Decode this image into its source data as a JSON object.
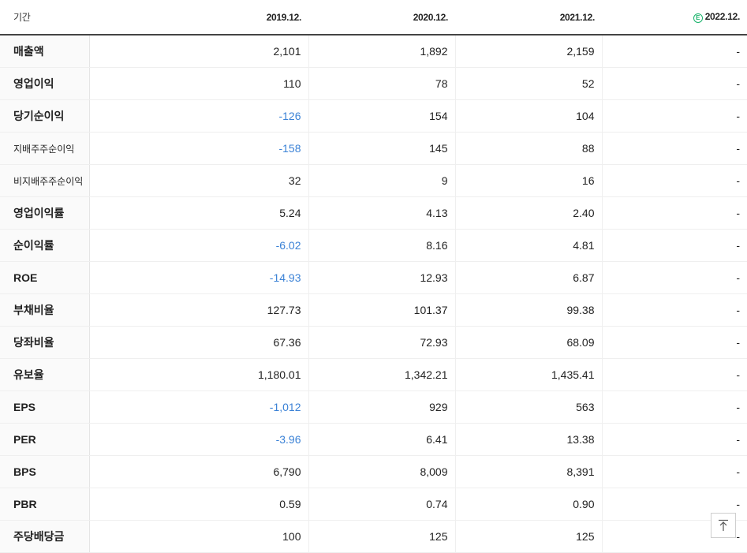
{
  "table": {
    "header": {
      "label": "기간",
      "years": [
        "2019.12.",
        "2020.12.",
        "2021.12.",
        "2022.12."
      ],
      "estimate_badge": "E"
    },
    "rows": [
      {
        "label": "매출액",
        "values": [
          "2,101",
          "1,892",
          "2,159",
          "-"
        ],
        "negative": [
          false,
          false,
          false,
          false
        ],
        "small": false,
        "group_start": false
      },
      {
        "label": "영업이익",
        "values": [
          "110",
          "78",
          "52",
          "-"
        ],
        "negative": [
          false,
          false,
          false,
          false
        ],
        "small": false,
        "group_start": false
      },
      {
        "label": "당기순이익",
        "values": [
          "-126",
          "154",
          "104",
          "-"
        ],
        "negative": [
          true,
          false,
          false,
          false
        ],
        "small": false,
        "group_start": false
      },
      {
        "label": "지배주주순이익",
        "values": [
          "-158",
          "145",
          "88",
          "-"
        ],
        "negative": [
          true,
          false,
          false,
          false
        ],
        "small": true,
        "group_start": false
      },
      {
        "label": "비지배주주순이익",
        "values": [
          "32",
          "9",
          "16",
          "-"
        ],
        "negative": [
          false,
          false,
          false,
          false
        ],
        "small": true,
        "group_start": false
      },
      {
        "label": "영업이익률",
        "values": [
          "5.24",
          "4.13",
          "2.40",
          "-"
        ],
        "negative": [
          false,
          false,
          false,
          false
        ],
        "small": false,
        "group_start": true
      },
      {
        "label": "순이익률",
        "values": [
          "-6.02",
          "8.16",
          "4.81",
          "-"
        ],
        "negative": [
          true,
          false,
          false,
          false
        ],
        "small": false,
        "group_start": false
      },
      {
        "label": "ROE",
        "values": [
          "-14.93",
          "12.93",
          "6.87",
          "-"
        ],
        "negative": [
          true,
          false,
          false,
          false
        ],
        "small": false,
        "group_start": false
      },
      {
        "label": "부채비율",
        "values": [
          "127.73",
          "101.37",
          "99.38",
          "-"
        ],
        "negative": [
          false,
          false,
          false,
          false
        ],
        "small": false,
        "group_start": true
      },
      {
        "label": "당좌비율",
        "values": [
          "67.36",
          "72.93",
          "68.09",
          "-"
        ],
        "negative": [
          false,
          false,
          false,
          false
        ],
        "small": false,
        "group_start": false
      },
      {
        "label": "유보율",
        "values": [
          "1,180.01",
          "1,342.21",
          "1,435.41",
          "-"
        ],
        "negative": [
          false,
          false,
          false,
          false
        ],
        "small": false,
        "group_start": false
      },
      {
        "label": "EPS",
        "values": [
          "-1,012",
          "929",
          "563",
          "-"
        ],
        "negative": [
          true,
          false,
          false,
          false
        ],
        "small": false,
        "group_start": true
      },
      {
        "label": "PER",
        "values": [
          "-3.96",
          "6.41",
          "13.38",
          "-"
        ],
        "negative": [
          true,
          false,
          false,
          false
        ],
        "small": false,
        "group_start": false
      },
      {
        "label": "BPS",
        "values": [
          "6,790",
          "8,009",
          "8,391",
          "-"
        ],
        "negative": [
          false,
          false,
          false,
          false
        ],
        "small": false,
        "group_start": false
      },
      {
        "label": "PBR",
        "values": [
          "0.59",
          "0.74",
          "0.90",
          "-"
        ],
        "negative": [
          false,
          false,
          false,
          false
        ],
        "small": false,
        "group_start": false
      },
      {
        "label": "주당배당금",
        "values": [
          "100",
          "125",
          "125",
          "-"
        ],
        "negative": [
          false,
          false,
          false,
          false
        ],
        "small": false,
        "group_start": true
      }
    ]
  },
  "colors": {
    "negative_value": "#3b82d6",
    "estimate_badge": "#19b36b"
  },
  "scroll_top_button": {
    "icon": "arrow-up-to-top-icon"
  }
}
